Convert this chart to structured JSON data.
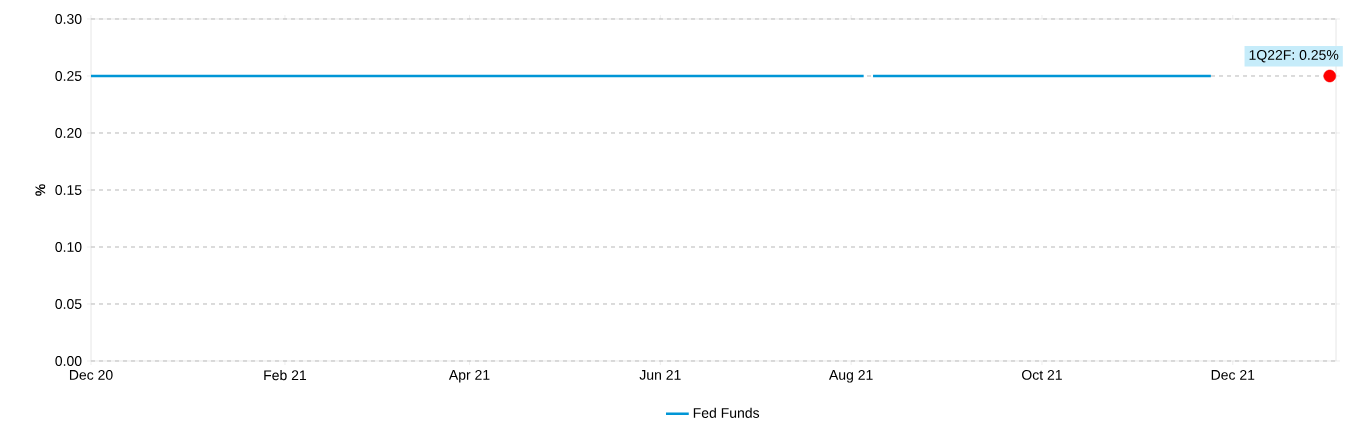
{
  "chart_data": {
    "type": "line",
    "ylabel": "%",
    "xlim": [
      "2020-12-01",
      "2022-01-03"
    ],
    "xticks": [
      {
        "value": "2020-12-01",
        "label": "Dec 20"
      },
      {
        "value": "2021-02-01",
        "label": "Feb 21"
      },
      {
        "value": "2021-04-01",
        "label": "Apr 21"
      },
      {
        "value": "2021-06-01",
        "label": "Jun 21"
      },
      {
        "value": "2021-08-01",
        "label": "Aug 21"
      },
      {
        "value": "2021-10-01",
        "label": "Oct 21"
      },
      {
        "value": "2021-12-01",
        "label": "Dec 21"
      }
    ],
    "ylim": [
      0,
      0.3
    ],
    "yticks": [
      {
        "value": 0,
        "label": "0.00"
      },
      {
        "value": 0.05,
        "label": "0.05"
      },
      {
        "value": 0.1,
        "label": "0.10"
      },
      {
        "value": 0.15,
        "label": "0.15"
      },
      {
        "value": 0.2,
        "label": "0.20"
      },
      {
        "value": 0.25,
        "label": "0.25"
      },
      {
        "value": 0.3,
        "label": "0.30"
      }
    ],
    "grid": "y",
    "legend": "bottom",
    "series": [
      {
        "name": "Fed Funds",
        "color": "#0096d6",
        "x": [
          "2020-12-01",
          "2021-08-05",
          "2021-08-06",
          "2021-08-08",
          "2021-11-24"
        ],
        "values": [
          0.25,
          0.25,
          null,
          0.25,
          0.25
        ]
      },
      {
        "type": "scatter",
        "color": "#ff0000",
        "x": [
          "2022-01-01"
        ],
        "values": [
          0.25
        ]
      }
    ],
    "annotations": [
      {
        "text": "1Q22F: 0.25%",
        "x": "2022-01-01",
        "y": 0.25
      }
    ]
  }
}
